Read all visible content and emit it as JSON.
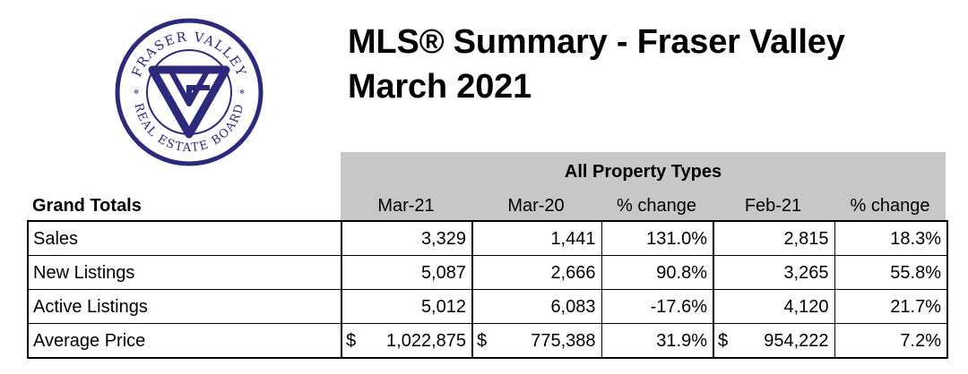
{
  "logo": {
    "top_text": "FRASER VALLEY",
    "bottom_text": "REAL ESTATE BOARD",
    "colors": {
      "navy": "#2b2a7c"
    }
  },
  "title": {
    "line1": "MLS® Summary - Fraser Valley",
    "line2": "March 2021"
  },
  "table": {
    "group_header": "All Property Types",
    "row_header": "Grand Totals",
    "columns": [
      "Mar-21",
      "Mar-20",
      "% change",
      "Feb-21",
      "% change"
    ],
    "rows": [
      {
        "label": "Sales",
        "mar21": "3,329",
        "mar20": "1,441",
        "chg1": "131.0%",
        "feb21": "2,815",
        "chg2": "18.3%"
      },
      {
        "label": "New Listings",
        "mar21": "5,087",
        "mar20": "2,666",
        "chg1": "90.8%",
        "feb21": "3,265",
        "chg2": "55.8%"
      },
      {
        "label": "Active Listings",
        "mar21": "5,012",
        "mar20": "6,083",
        "chg1": "-17.6%",
        "feb21": "4,120",
        "chg2": "21.7%"
      },
      {
        "label": "Average Price",
        "currency": "$",
        "mar21": "1,022,875",
        "mar20": "775,388",
        "chg1": "31.9%",
        "feb21": "954,222",
        "chg2": "7.2%"
      }
    ]
  }
}
